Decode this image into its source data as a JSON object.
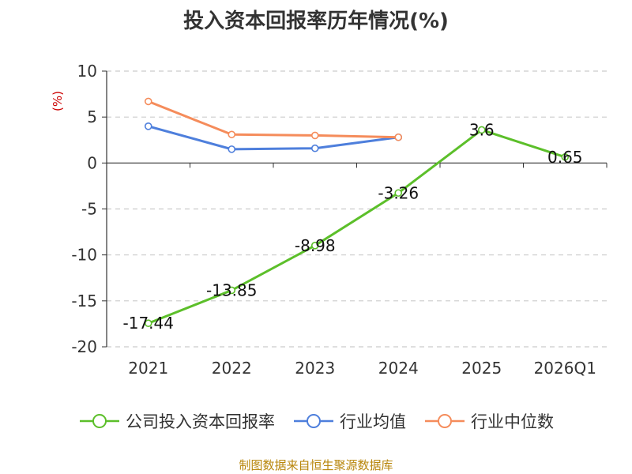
{
  "chart_data": {
    "type": "line",
    "title": "投入资本回报率历年情况(%)",
    "ylabel": "(%)",
    "xlabel": "",
    "categories": [
      "2021",
      "2022",
      "2023",
      "2024",
      "2025",
      "2026Q1"
    ],
    "ylim": [
      -20,
      10
    ],
    "yticks": [
      10,
      5,
      0,
      -5,
      -10,
      -15,
      -20
    ],
    "grid": true,
    "legend_position": "bottom",
    "series": [
      {
        "name": "公司投入资本回报率",
        "color": "#5cbf2a",
        "values": [
          -17.44,
          -13.85,
          -8.98,
          -3.26,
          3.6,
          0.65
        ],
        "labels": [
          "-17.44",
          "-13.85",
          "-8.98",
          "-3.26",
          "3.6",
          "0.65"
        ]
      },
      {
        "name": "行业均值",
        "color": "#4e7fdc",
        "values": [
          4.0,
          1.5,
          1.6,
          2.8,
          null,
          null
        ]
      },
      {
        "name": "行业中位数",
        "color": "#f58c5b",
        "values": [
          6.7,
          3.1,
          3.0,
          2.8,
          null,
          null
        ]
      }
    ]
  },
  "source": "制图数据来自恒生聚源数据库"
}
